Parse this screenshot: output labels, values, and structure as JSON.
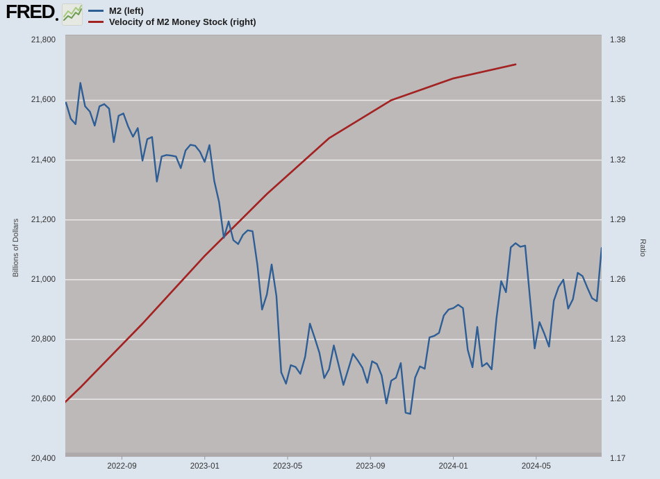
{
  "header": {
    "logo_text": "FRED",
    "logo_icon": "green-sparkline-icon"
  },
  "legend": {
    "items": [
      {
        "label": "M2 (left)",
        "color": "#2e5e94"
      },
      {
        "label": "Velocity of M2 Money Stock (right)",
        "color": "#a32222"
      }
    ]
  },
  "colors": {
    "background": "#dce4ee",
    "plot_background": "#bdb9b9",
    "gridline": "#e9e7e7",
    "m2_line": "#2e5e94",
    "velocity_line": "#a32222",
    "tick_text": "#333333"
  },
  "chart_data": {
    "type": "line",
    "title": "",
    "left_axis_title": "Billions of Dollars",
    "right_axis_title": "Ratio",
    "left_ticks": [
      {
        "label": "21,800",
        "value": 21800
      },
      {
        "label": "21,600",
        "value": 21600
      },
      {
        "label": "21,400",
        "value": 21400
      },
      {
        "label": "21,200",
        "value": 21200
      },
      {
        "label": "21,000",
        "value": 21000
      },
      {
        "label": "20,800",
        "value": 20800
      },
      {
        "label": "20,600",
        "value": 20600
      },
      {
        "label": "20,400",
        "value": 20400
      }
    ],
    "right_ticks": [
      {
        "label": "1.38",
        "value": 1.38
      },
      {
        "label": "1.35",
        "value": 1.35
      },
      {
        "label": "1.32",
        "value": 1.32
      },
      {
        "label": "1.29",
        "value": 1.29
      },
      {
        "label": "1.26",
        "value": 1.26
      },
      {
        "label": "1.23",
        "value": 1.23
      },
      {
        "label": "1.20",
        "value": 1.2
      },
      {
        "label": "1.17",
        "value": 1.17
      }
    ],
    "x_ticks": [
      {
        "label": "2022-09",
        "date": "2022-09-01"
      },
      {
        "label": "2023-01",
        "date": "2023-01-01"
      },
      {
        "label": "2023-05",
        "date": "2023-05-01"
      },
      {
        "label": "2023-09",
        "date": "2023-09-01"
      },
      {
        "label": "2024-01",
        "date": "2024-01-01"
      },
      {
        "label": "2024-05",
        "date": "2024-05-01"
      }
    ],
    "gridline_values_left": [
      21600,
      21400,
      21200,
      21000,
      20800,
      20600
    ],
    "left_ylim": [
      20400,
      21800
    ],
    "right_ylim": [
      1.17,
      1.38
    ],
    "series": [
      {
        "name": "M2 (left)",
        "axis": "left",
        "frequency": "weekly",
        "dates": [
          "2022-06-13",
          "2022-06-20",
          "2022-06-27",
          "2022-07-04",
          "2022-07-11",
          "2022-07-18",
          "2022-07-25",
          "2022-08-01",
          "2022-08-08",
          "2022-08-15",
          "2022-08-22",
          "2022-08-29",
          "2022-09-05",
          "2022-09-12",
          "2022-09-19",
          "2022-09-26",
          "2022-10-03",
          "2022-10-10",
          "2022-10-17",
          "2022-10-24",
          "2022-10-31",
          "2022-11-07",
          "2022-11-14",
          "2022-11-21",
          "2022-11-28",
          "2022-12-05",
          "2022-12-12",
          "2022-12-19",
          "2022-12-26",
          "2023-01-02",
          "2023-01-09",
          "2023-01-16",
          "2023-01-23",
          "2023-01-30",
          "2023-02-06",
          "2023-02-13",
          "2023-02-20",
          "2023-02-27",
          "2023-03-06",
          "2023-03-13",
          "2023-03-20",
          "2023-03-27",
          "2023-04-03",
          "2023-04-10",
          "2023-04-17",
          "2023-04-24",
          "2023-05-01",
          "2023-05-08",
          "2023-05-15",
          "2023-05-22",
          "2023-05-29",
          "2023-06-05",
          "2023-06-12",
          "2023-06-19",
          "2023-06-26",
          "2023-07-03",
          "2023-07-10",
          "2023-07-17",
          "2023-07-24",
          "2023-07-31",
          "2023-08-07",
          "2023-08-14",
          "2023-08-21",
          "2023-08-28",
          "2023-09-04",
          "2023-09-11",
          "2023-09-18",
          "2023-09-25",
          "2023-10-02",
          "2023-10-09",
          "2023-10-16",
          "2023-10-23",
          "2023-10-30",
          "2023-11-06",
          "2023-11-13",
          "2023-11-20",
          "2023-11-27",
          "2023-12-04",
          "2023-12-11",
          "2023-12-18",
          "2023-12-25",
          "2024-01-01",
          "2024-01-08",
          "2024-01-15",
          "2024-01-22",
          "2024-01-29",
          "2024-02-05",
          "2024-02-12",
          "2024-02-19",
          "2024-02-26",
          "2024-03-04",
          "2024-03-11",
          "2024-03-18",
          "2024-03-25",
          "2024-04-01",
          "2024-04-08",
          "2024-04-15",
          "2024-04-22",
          "2024-04-29",
          "2024-05-06",
          "2024-05-13",
          "2024-05-20",
          "2024-05-27",
          "2024-06-03",
          "2024-06-10",
          "2024-06-17",
          "2024-06-24",
          "2024-07-01",
          "2024-07-08",
          "2024-07-15",
          "2024-07-22",
          "2024-07-29",
          "2024-08-05"
        ],
        "values": [
          21592,
          21538,
          21520,
          21658,
          21580,
          21562,
          21515,
          21580,
          21587,
          21572,
          21460,
          21548,
          21556,
          21512,
          21478,
          21507,
          21398,
          21470,
          21477,
          21328,
          21412,
          21417,
          21415,
          21412,
          21373,
          21432,
          21451,
          21448,
          21428,
          21394,
          21450,
          21330,
          21260,
          21140,
          21195,
          21132,
          21119,
          21150,
          21165,
          21162,
          21051,
          20900,
          20950,
          21051,
          20945,
          20690,
          20652,
          20714,
          20708,
          20685,
          20742,
          20853,
          20805,
          20755,
          20671,
          20700,
          20780,
          20715,
          20648,
          20700,
          20752,
          20730,
          20705,
          20655,
          20727,
          20718,
          20680,
          20586,
          20662,
          20672,
          20721,
          20555,
          20551,
          20672,
          20710,
          20702,
          20807,
          20812,
          20822,
          20880,
          20900,
          20905,
          20916,
          20905,
          20765,
          20707,
          20842,
          20710,
          20721,
          20700,
          20870,
          20995,
          20958,
          21108,
          21122,
          21110,
          21114,
          20942,
          20770,
          20858,
          20820,
          20776,
          20930,
          20975,
          21000,
          20903,
          20935,
          21023,
          21012,
          20974,
          20938,
          20928,
          21106
        ]
      },
      {
        "name": "Velocity of M2 Money Stock (right)",
        "axis": "right",
        "frequency": "quarterly",
        "dates": [
          "2022-04-01",
          "2022-07-01",
          "2022-10-01",
          "2023-01-01",
          "2023-04-01",
          "2023-07-01",
          "2023-10-01",
          "2024-01-01",
          "2024-04-01"
        ],
        "values": [
          1.176,
          1.206,
          1.238,
          1.272,
          1.303,
          1.331,
          1.35,
          1.361,
          1.368
        ]
      }
    ]
  }
}
